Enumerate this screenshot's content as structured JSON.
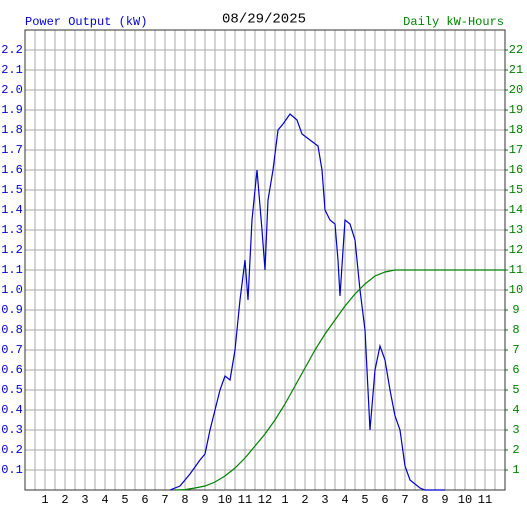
{
  "chart_data": {
    "type": "line",
    "title": "08/29/2025",
    "y_label": "Power Output (kW)",
    "y2_label": "Daily kW-Hours",
    "grid": true,
    "xlim": [
      0,
      24
    ],
    "xticks": [
      1,
      2,
      3,
      4,
      5,
      6,
      7,
      8,
      9,
      10,
      11,
      12,
      {
        "value": 13,
        "label": "1"
      },
      {
        "value": 14,
        "label": "2"
      },
      {
        "value": 15,
        "label": "3"
      },
      {
        "value": 16,
        "label": "4"
      },
      {
        "value": 17,
        "label": "5"
      },
      {
        "value": 18,
        "label": "6"
      },
      {
        "value": 19,
        "label": "7"
      },
      {
        "value": 20,
        "label": "8"
      },
      {
        "value": 21,
        "label": "9"
      },
      {
        "value": 22,
        "label": "10"
      },
      {
        "value": 23,
        "label": "11"
      }
    ],
    "ylim": [
      0,
      2.3
    ],
    "yticks": [
      0.1,
      0.2,
      0.3,
      0.4,
      0.5,
      0.6,
      0.7,
      0.8,
      0.9,
      {
        "value": 1,
        "label": "1.0"
      },
      1.1,
      1.2,
      1.3,
      1.4,
      1.5,
      1.6,
      1.7,
      1.8,
      1.9,
      {
        "value": 2,
        "label": "2.0"
      },
      2.1,
      2.2
    ],
    "y2lim": [
      0,
      23
    ],
    "y2ticks": [
      1,
      2,
      3,
      4,
      5,
      6,
      7,
      8,
      9,
      10,
      11,
      12,
      13,
      14,
      15,
      16,
      17,
      18,
      19,
      20,
      21,
      22
    ],
    "series": [
      {
        "color": "#0000cc",
        "x": [
          7.25,
          7.75,
          8.25,
          8.75,
          9,
          9.25,
          9.5,
          9.75,
          10,
          10.25,
          10.5,
          10.75,
          11,
          11.15,
          11.35,
          11.6,
          11.85,
          12,
          12.15,
          12.4,
          12.65,
          12.9,
          13.25,
          13.6,
          13.85,
          14.25,
          14.65,
          14.85,
          15,
          15.25,
          15.5,
          15.65,
          15.75,
          16,
          16.25,
          16.5,
          16.75,
          17,
          17.25,
          17.5,
          17.75,
          18,
          18.25,
          18.5,
          18.75,
          19,
          19.25,
          19.75,
          20,
          21
        ],
        "values": [
          0,
          0.02,
          0.08,
          0.15,
          0.18,
          0.3,
          0.4,
          0.5,
          0.57,
          0.55,
          0.7,
          0.95,
          1.15,
          0.95,
          1.35,
          1.6,
          1.3,
          1.1,
          1.45,
          1.6,
          1.8,
          1.83,
          1.88,
          1.85,
          1.78,
          1.75,
          1.72,
          1.6,
          1.4,
          1.35,
          1.33,
          1.15,
          0.97,
          1.35,
          1.33,
          1.25,
          1.0,
          0.8,
          0.3,
          0.6,
          0.72,
          0.65,
          0.5,
          0.37,
          0.3,
          0.12,
          0.05,
          0.01,
          0,
          0
        ]
      },
      {
        "color": "#008000",
        "axis": "y2",
        "x": [
          7.5,
          8,
          8.5,
          9,
          9.5,
          10,
          10.5,
          11,
          11.5,
          12,
          12.5,
          13,
          13.5,
          14,
          14.5,
          15,
          15.5,
          16,
          16.5,
          17,
          17.5,
          18,
          18.5,
          24
        ],
        "values": [
          0,
          0.02,
          0.1,
          0.2,
          0.4,
          0.7,
          1.1,
          1.6,
          2.2,
          2.8,
          3.5,
          4.3,
          5.2,
          6.1,
          7.0,
          7.8,
          8.5,
          9.2,
          9.8,
          10.3,
          10.7,
          10.9,
          11.0,
          11.0
        ]
      }
    ]
  }
}
